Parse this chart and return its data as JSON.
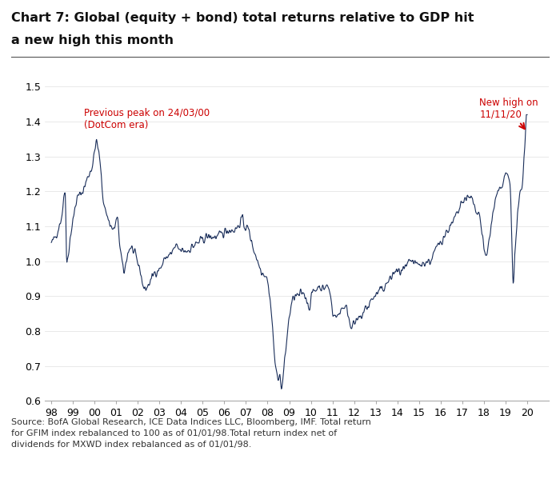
{
  "title_line1": "Chart 7: Global (equity + bond) total returns relative to GDP hit",
  "title_line2": "a new high this month",
  "source_text": "Source: BofA Global Research, ICE Data Indices LLC, Bloomberg, IMF. Total return\nfor GFIM index rebalanced to 100 as of 01/01/98.Total return index net of\ndividends for MXWD index rebalanced as of 01/01/98.",
  "annotation1_text": "Previous peak on 24/03/00\n(DotCom era)",
  "annotation2_text": "New high on\n11/11/20",
  "line_color": "#1a2e5a",
  "annotation_color": "#cc0000",
  "ylim": [
    0.6,
    1.55
  ],
  "yticks": [
    0.6,
    0.7,
    0.8,
    0.9,
    1.0,
    1.1,
    1.2,
    1.3,
    1.4,
    1.5
  ],
  "xtick_labels": [
    "98",
    "99",
    "00",
    "01",
    "02",
    "03",
    "04",
    "05",
    "06",
    "07",
    "08",
    "09",
    "10",
    "11",
    "12",
    "13",
    "14",
    "15",
    "16",
    "17",
    "18",
    "19",
    "20"
  ],
  "bg_color": "#ffffff",
  "title_fontsize": 11.5,
  "axis_fontsize": 9,
  "source_fontsize": 8.0
}
